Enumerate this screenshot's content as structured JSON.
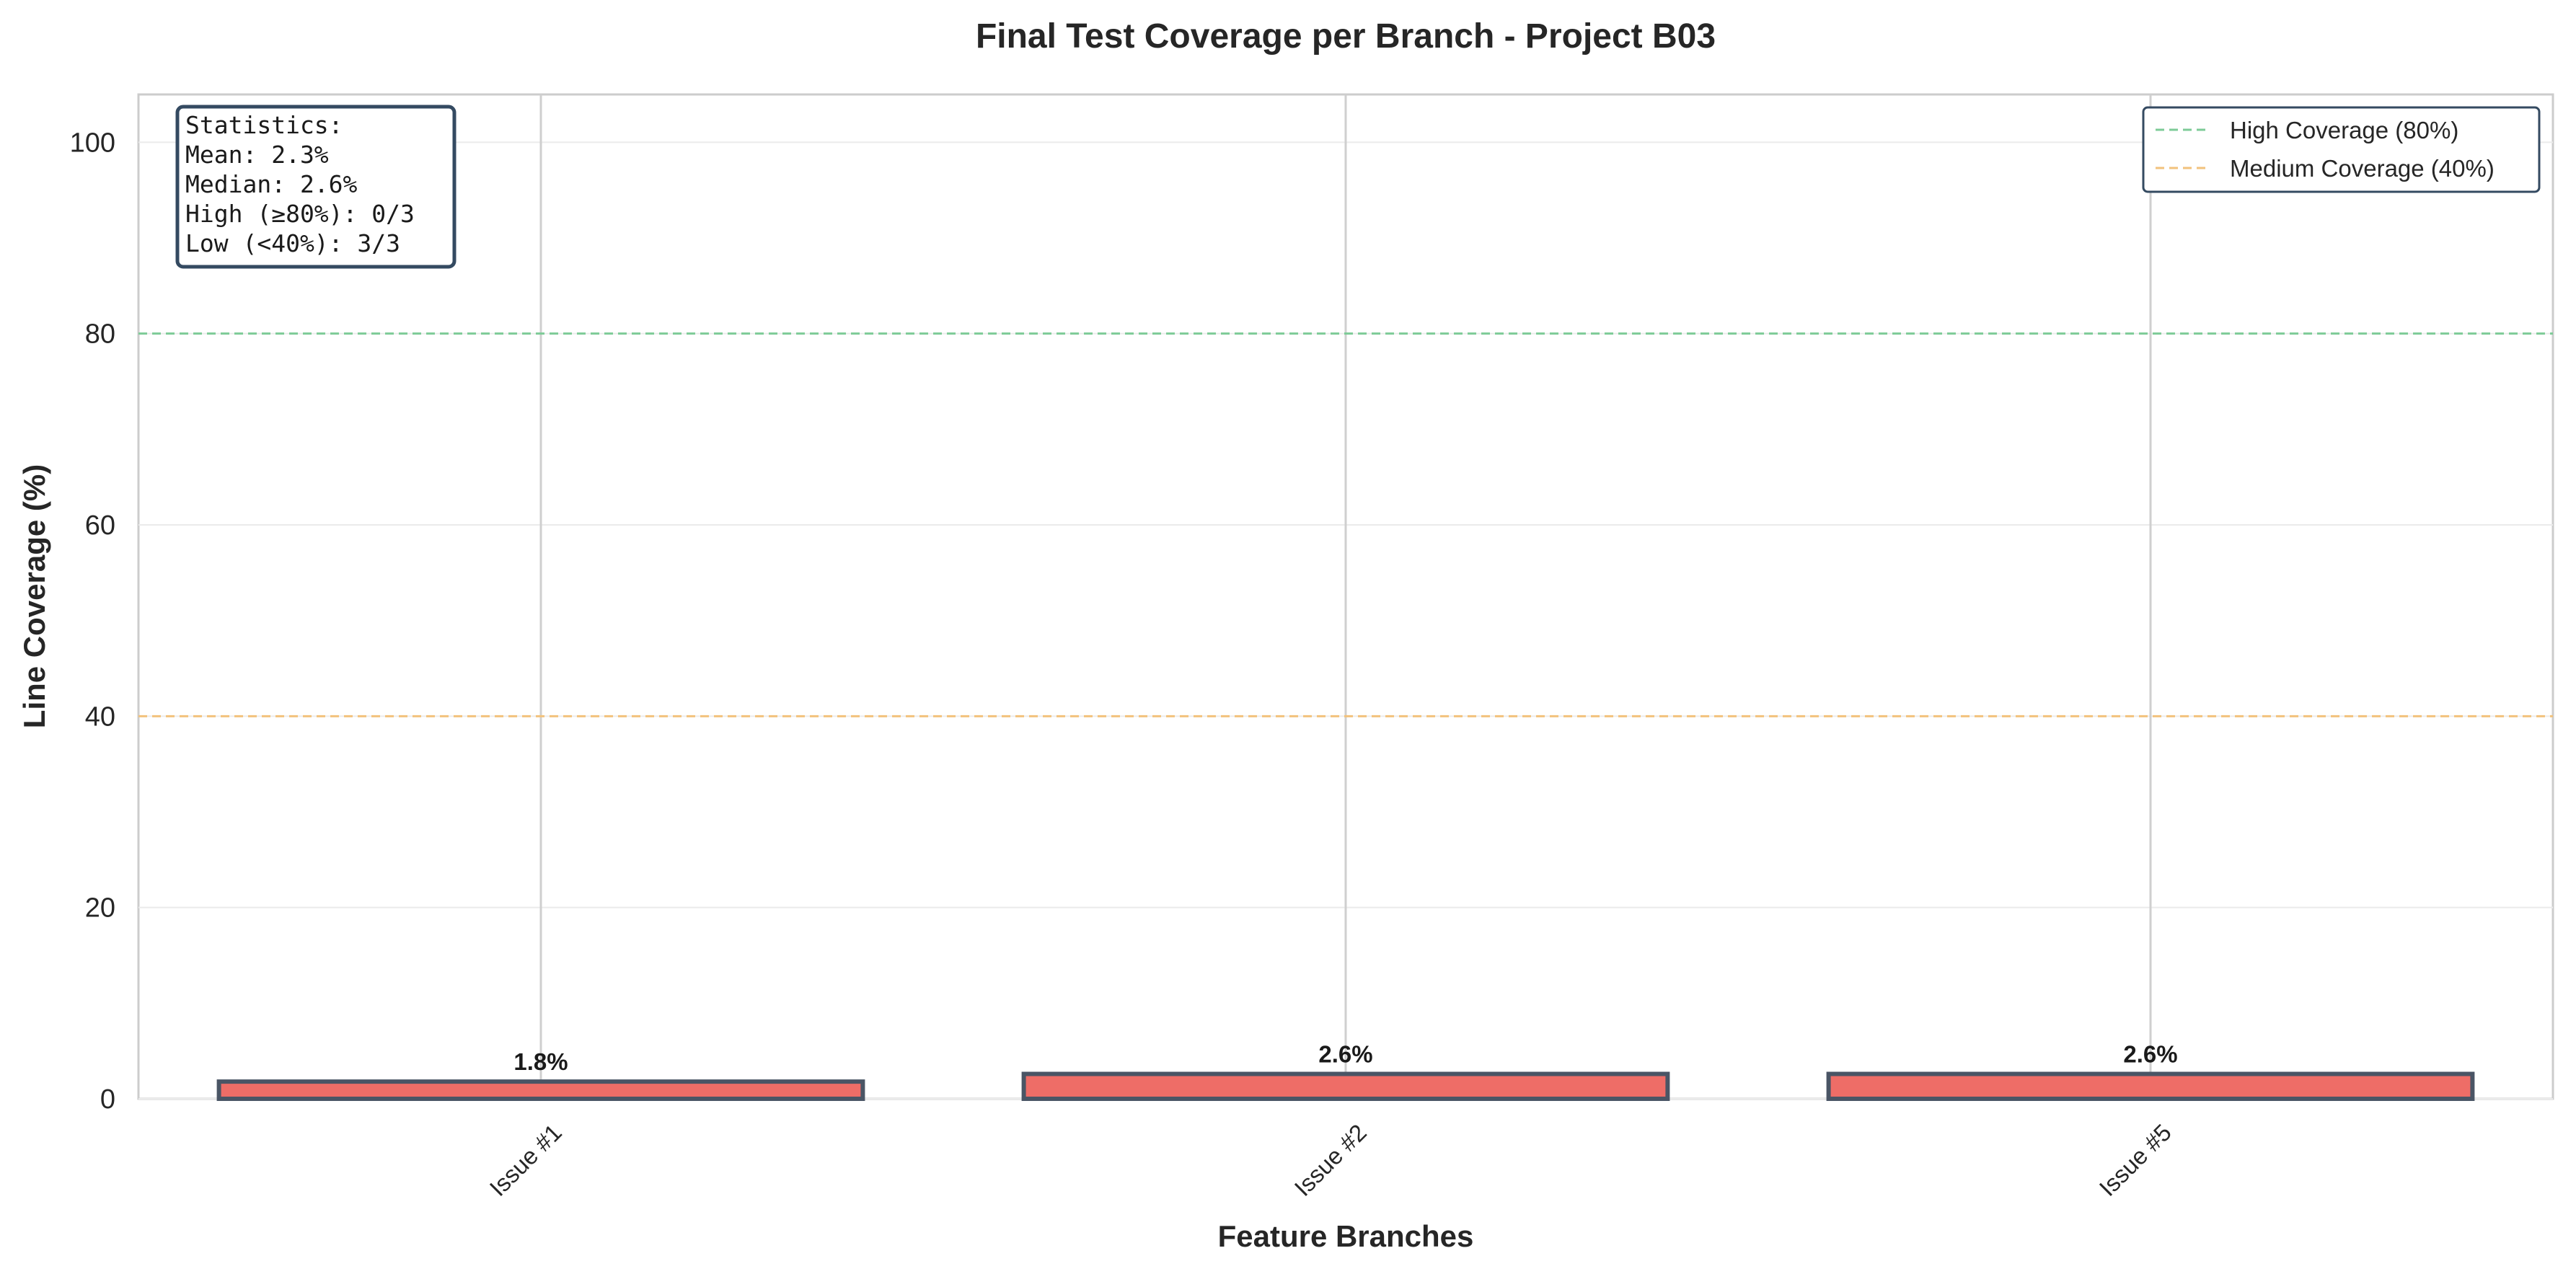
{
  "chart_data": {
    "type": "bar",
    "title": "Final Test Coverage per Branch - Project B03",
    "xlabel": "Feature Branches",
    "ylabel": "Line Coverage (%)",
    "categories": [
      "Issue #1",
      "Issue #2",
      "Issue #5"
    ],
    "values": [
      1.8,
      2.6,
      2.6
    ],
    "value_labels": [
      "1.8%",
      "2.6%",
      "2.6%"
    ],
    "ylim": [
      0,
      105
    ],
    "yticks": [
      0,
      20,
      40,
      60,
      80,
      100
    ],
    "ytick_labels": [
      "0",
      "20",
      "40",
      "60",
      "80",
      "100"
    ],
    "grid": true,
    "bar_color": "#EE6D67",
    "bar_edge_color": "#4A5565",
    "reference_lines": [
      {
        "label": "High Coverage (80%)",
        "value": 80,
        "color": "#7DCB97"
      },
      {
        "label": "Medium Coverage (40%)",
        "value": 40,
        "color": "#F2C27C"
      }
    ],
    "legend_position": "top-right",
    "stats_box": {
      "position": "top-left",
      "lines": [
        "Statistics:",
        "Mean: 2.3%",
        "Median: 2.6%",
        "High (≥80%): 0/3",
        "Low (<40%): 3/3"
      ]
    },
    "frame_color": "#344A61"
  }
}
